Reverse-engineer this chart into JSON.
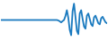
{
  "line_color": "#1a7abf",
  "background_color": "#ffffff",
  "linewidth": 1.3,
  "y_values": [
    0.0,
    0.0,
    0.0,
    0.0,
    0.0,
    0.0,
    0.0,
    0.0,
    0.0,
    0.0,
    0.0,
    0.0,
    0.0,
    0.0,
    0.0,
    0.0,
    0.0,
    0.0,
    0.0,
    0.0,
    0.0,
    0.0,
    0.0,
    0.0,
    0.0,
    0.0,
    0.0,
    0.0,
    0.0,
    0.0,
    0.0,
    0.0,
    0.0,
    0.0,
    0.0,
    0.0,
    0.0,
    0.0,
    0.0,
    0.0,
    -0.2,
    -0.6,
    -1.1,
    -0.5,
    0.0,
    1.8,
    4.5,
    1.0,
    -4.5,
    -7.0,
    4.0,
    7.5,
    1.5,
    -5.0,
    -6.5,
    3.0,
    4.5,
    0.5,
    -3.0,
    -4.0,
    2.0,
    3.0,
    0.5,
    -2.0,
    -2.8,
    1.2,
    2.0,
    0.3,
    -1.5,
    -2.0,
    0.8,
    1.5,
    0.2,
    -1.0,
    -1.5
  ]
}
